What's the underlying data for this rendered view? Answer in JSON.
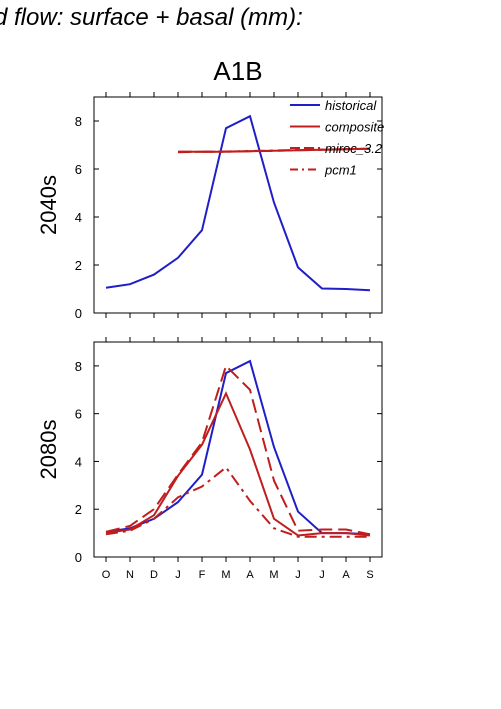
{
  "title": "d flow: surface + basal (mm):",
  "scenario": "A1B",
  "legend": [
    {
      "name": "historical",
      "color": "#1f1fc8",
      "dash": "solid"
    },
    {
      "name": "composite",
      "color": "#c01e1e",
      "dash": "solid"
    },
    {
      "name": "miroc_3.2",
      "color": "#c01e1e",
      "dash": "long-dash"
    },
    {
      "name": "pcm1",
      "color": "#c01e1e",
      "dash": "dash-dot"
    }
  ],
  "chart_data": [
    {
      "type": "line",
      "ylabel": "2040s",
      "categories": [
        "O",
        "N",
        "D",
        "J",
        "F",
        "M",
        "A",
        "M",
        "J",
        "J",
        "A",
        "S"
      ],
      "ylim": [
        0,
        9
      ],
      "yticks": [
        0,
        2,
        4,
        6,
        8
      ],
      "series": [
        {
          "name": "historical",
          "values": [
            1.05,
            1.2,
            1.6,
            2.3,
            3.45,
            7.7,
            8.2,
            4.6,
            1.9,
            1.02,
            1.0,
            0.95
          ]
        },
        {
          "name": "composite",
          "values": [
            null,
            null,
            null,
            6.72,
            6.72,
            6.72,
            6.74,
            6.76,
            6.78,
            6.8,
            6.82,
            6.84
          ]
        },
        {
          "name": "miroc_3.2",
          "values": [
            null,
            null,
            null,
            6.72,
            6.72,
            6.73,
            6.74,
            6.76,
            6.78,
            6.8,
            6.82,
            6.84
          ]
        },
        {
          "name": "pcm1",
          "values": [
            null,
            null,
            null,
            6.7,
            6.72,
            6.72,
            6.75,
            6.77,
            6.79,
            6.81,
            6.83,
            6.85
          ]
        }
      ]
    },
    {
      "type": "line",
      "ylabel": "2080s",
      "categories": [
        "O",
        "N",
        "D",
        "J",
        "F",
        "M",
        "A",
        "M",
        "J",
        "J",
        "A",
        "S"
      ],
      "ylim": [
        0,
        9
      ],
      "yticks": [
        0,
        2,
        4,
        6,
        8
      ],
      "series": [
        {
          "name": "historical",
          "values": [
            1.05,
            1.2,
            1.6,
            2.3,
            3.45,
            7.7,
            8.2,
            4.6,
            1.9,
            1.0,
            1.0,
            0.95
          ]
        },
        {
          "name": "composite",
          "values": [
            1.0,
            1.15,
            1.75,
            3.4,
            4.7,
            6.85,
            4.5,
            1.6,
            0.9,
            1.0,
            1.0,
            0.9
          ]
        },
        {
          "name": "miroc_3.2",
          "values": [
            1.05,
            1.3,
            2.0,
            3.45,
            4.8,
            8.0,
            7.0,
            3.2,
            1.1,
            1.15,
            1.15,
            0.95
          ]
        },
        {
          "name": "pcm1",
          "values": [
            0.95,
            1.1,
            1.6,
            2.5,
            2.95,
            3.75,
            2.35,
            1.2,
            0.85,
            0.85,
            0.85,
            0.85
          ]
        }
      ]
    }
  ]
}
